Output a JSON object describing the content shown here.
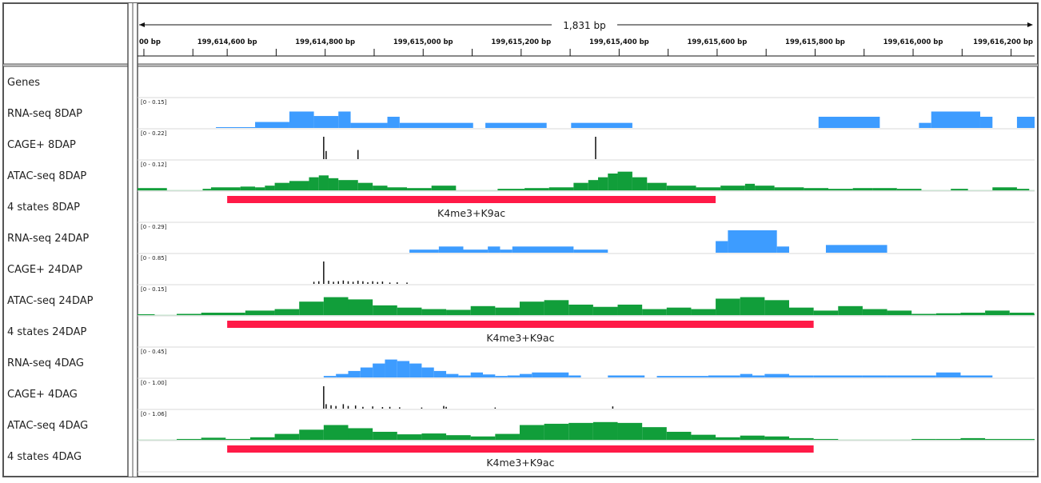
{
  "ruler": {
    "span_label": "1,831 bp",
    "ticks": [
      {
        "label": "00 bp",
        "value": 199614430
      },
      {
        "label": "199,614,600 bp",
        "value": 199614600
      },
      {
        "label": "199,614,800 bp",
        "value": 199614800
      },
      {
        "label": "199,615,000 bp",
        "value": 199615000
      },
      {
        "label": "199,615,200 bp",
        "value": 199615200
      },
      {
        "label": "199,615,400 bp",
        "value": 199615400
      },
      {
        "label": "199,615,600 bp",
        "value": 199615600
      },
      {
        "label": "199,615,800 bp",
        "value": 199615800
      },
      {
        "label": "199,616,000 bp",
        "value": 199616000
      },
      {
        "label": "199,616,200 bp",
        "value": 199616200
      }
    ]
  },
  "view": {
    "start": 199614417,
    "end": 199616248
  },
  "colors": {
    "rna": "#3d9cff",
    "atac": "#119e3a",
    "cage": "#111111",
    "state": "#ff1a47",
    "grid": "#d9d9d9",
    "frame": "#555555"
  },
  "tracks": [
    {
      "id": "genes",
      "name": "Genes",
      "type": "empty"
    },
    {
      "id": "rna-8dap",
      "name": "RNA-seq 8DAP",
      "type": "rna",
      "range": "[0 - 0.15]",
      "max": 0.15,
      "bins": [
        [
          199614577,
          199614657,
          0.0
        ],
        [
          199614657,
          199614727,
          0.04
        ],
        [
          199614727,
          199614777,
          0.11
        ],
        [
          199614777,
          199614827,
          0.08
        ],
        [
          199614827,
          199614852,
          0.11
        ],
        [
          199614852,
          199614927,
          0.034
        ],
        [
          199614927,
          199614952,
          0.075
        ],
        [
          199614952,
          199615102,
          0.034
        ],
        [
          199615127,
          199615252,
          0.034
        ],
        [
          199615302,
          199615427,
          0.034
        ],
        [
          199615807,
          199615932,
          0.075
        ],
        [
          199616012,
          199616037,
          0.034
        ],
        [
          199616037,
          199616137,
          0.11
        ],
        [
          199616137,
          199616162,
          0.075
        ],
        [
          199616212,
          199616342,
          0.075
        ]
      ]
    },
    {
      "id": "cage-8dap",
      "name": "CAGE+ 8DAP",
      "type": "cage",
      "range": "[0 - 0.22]",
      "max": 0.22,
      "spikes": [
        [
          199614797,
          0.22
        ],
        [
          199614802,
          0.08
        ],
        [
          199614867,
          0.09
        ],
        [
          199615352,
          0.22
        ]
      ]
    },
    {
      "id": "atac-8dap",
      "name": "ATAC-seq 8DAP",
      "type": "atac",
      "range": "[0 - 0.12]",
      "max": 0.12,
      "bins": [
        [
          199614417,
          199614477,
          0.012
        ],
        [
          199614550,
          199614567,
          0.008
        ],
        [
          199614567,
          199614627,
          0.016
        ],
        [
          199614627,
          199614657,
          0.02
        ],
        [
          199614657,
          199614677,
          0.016
        ],
        [
          199614677,
          199614697,
          0.025
        ],
        [
          199614697,
          199614727,
          0.04
        ],
        [
          199614727,
          199614767,
          0.05
        ],
        [
          199614767,
          199614787,
          0.07
        ],
        [
          199614787,
          199614807,
          0.08
        ],
        [
          199614807,
          199614827,
          0.065
        ],
        [
          199614827,
          199614867,
          0.055
        ],
        [
          199614867,
          199614897,
          0.04
        ],
        [
          199614897,
          199614927,
          0.025
        ],
        [
          199614927,
          199614967,
          0.016
        ],
        [
          199614967,
          199615017,
          0.012
        ],
        [
          199615017,
          199615067,
          0.025
        ],
        [
          199615152,
          199615207,
          0.008
        ],
        [
          199615207,
          199615257,
          0.012
        ],
        [
          199615257,
          199615307,
          0.016
        ],
        [
          199615307,
          199615337,
          0.04
        ],
        [
          199615337,
          199615357,
          0.055
        ],
        [
          199615357,
          199615377,
          0.07
        ],
        [
          199615377,
          199615397,
          0.09
        ],
        [
          199615397,
          199615427,
          0.1
        ],
        [
          199615427,
          199615457,
          0.07
        ],
        [
          199615457,
          199615497,
          0.04
        ],
        [
          199615497,
          199615557,
          0.025
        ],
        [
          199615557,
          199615607,
          0.016
        ],
        [
          199615607,
          199615657,
          0.025
        ],
        [
          199615657,
          199615677,
          0.035
        ],
        [
          199615677,
          199615717,
          0.025
        ],
        [
          199615717,
          199615777,
          0.016
        ],
        [
          199615777,
          199615827,
          0.012
        ],
        [
          199615827,
          199615877,
          0.008
        ],
        [
          199615877,
          199615917,
          0.012
        ],
        [
          199615917,
          199615967,
          0.012
        ],
        [
          199615967,
          199616017,
          0.008
        ],
        [
          199616077,
          199616112,
          0.008
        ],
        [
          199616162,
          199616212,
          0.016
        ],
        [
          199616212,
          199616237,
          0.008
        ]
      ]
    },
    {
      "id": "states-8dap",
      "name": "4 states 8DAP",
      "type": "state",
      "segments": [
        {
          "start": 199614600,
          "end": 199615597,
          "label": "K4me3+K9ac"
        }
      ]
    },
    {
      "id": "rna-24dap",
      "name": "RNA-seq 24DAP",
      "type": "rna",
      "range": "[0 - 0.29]",
      "max": 0.29,
      "bins": [
        [
          199614972,
          199615032,
          0.04
        ],
        [
          199615032,
          199615082,
          0.08
        ],
        [
          199615082,
          199615132,
          0.04
        ],
        [
          199615132,
          199615157,
          0.08
        ],
        [
          199615157,
          199615182,
          0.04
        ],
        [
          199615182,
          199615307,
          0.08
        ],
        [
          199615307,
          199615377,
          0.04
        ],
        [
          199615597,
          199615622,
          0.15
        ],
        [
          199615622,
          199615722,
          0.29
        ],
        [
          199615722,
          199615747,
          0.08
        ],
        [
          199615822,
          199615947,
          0.1
        ]
      ]
    },
    {
      "id": "cage-24dap",
      "name": "CAGE+ 24DAP",
      "type": "cage",
      "range": "[0 - 0.85]",
      "max": 0.85,
      "spikes": [
        [
          199614797,
          0.85
        ],
        [
          199614777,
          0.08
        ],
        [
          199614787,
          0.1
        ],
        [
          199614807,
          0.12
        ],
        [
          199614817,
          0.08
        ],
        [
          199614827,
          0.1
        ],
        [
          199614837,
          0.13
        ],
        [
          199614847,
          0.1
        ],
        [
          199614857,
          0.08
        ],
        [
          199614867,
          0.12
        ],
        [
          199614877,
          0.1
        ],
        [
          199614887,
          0.06
        ],
        [
          199614897,
          0.1
        ],
        [
          199614907,
          0.07
        ],
        [
          199614917,
          0.09
        ],
        [
          199614932,
          0.05
        ],
        [
          199614947,
          0.06
        ],
        [
          199614967,
          0.05
        ]
      ]
    },
    {
      "id": "atac-24dap",
      "name": "ATAC-seq 24DAP",
      "type": "atac",
      "range": "[0 - 0.15]",
      "max": 0.15,
      "bins": [
        [
          199614417,
          199614452,
          0.004
        ],
        [
          199614497,
          199614547,
          0.008
        ],
        [
          199614547,
          199614637,
          0.016
        ],
        [
          199614637,
          199614697,
          0.03
        ],
        [
          199614697,
          199614747,
          0.04
        ],
        [
          199614747,
          199614797,
          0.09
        ],
        [
          199614797,
          199614847,
          0.12
        ],
        [
          199614847,
          199614897,
          0.105
        ],
        [
          199614897,
          199614947,
          0.065
        ],
        [
          199614947,
          199614997,
          0.05
        ],
        [
          199614997,
          199615047,
          0.04
        ],
        [
          199615047,
          199615097,
          0.035
        ],
        [
          199615097,
          199615147,
          0.06
        ],
        [
          199615147,
          199615197,
          0.05
        ],
        [
          199615197,
          199615247,
          0.09
        ],
        [
          199615247,
          199615297,
          0.1
        ],
        [
          199615297,
          199615347,
          0.07
        ],
        [
          199615347,
          199615397,
          0.055
        ],
        [
          199615397,
          199615447,
          0.07
        ],
        [
          199615447,
          199615497,
          0.04
        ],
        [
          199615497,
          199615547,
          0.05
        ],
        [
          199615547,
          199615597,
          0.04
        ],
        [
          199615597,
          199615647,
          0.11
        ],
        [
          199615647,
          199615697,
          0.12
        ],
        [
          199615697,
          199615747,
          0.1
        ],
        [
          199615747,
          199615797,
          0.05
        ],
        [
          199615797,
          199615847,
          0.03
        ],
        [
          199615847,
          199615897,
          0.06
        ],
        [
          199615897,
          199615947,
          0.04
        ],
        [
          199615947,
          199615997,
          0.03
        ],
        [
          199615997,
          199616047,
          0.008
        ],
        [
          199616047,
          199616097,
          0.012
        ],
        [
          199616097,
          199616147,
          0.016
        ],
        [
          199616147,
          199616197,
          0.03
        ],
        [
          199616197,
          199616247,
          0.016
        ],
        [
          199616247,
          199616342,
          0.008
        ]
      ]
    },
    {
      "id": "states-24dap",
      "name": "4 states 24DAP",
      "type": "state",
      "segments": [
        {
          "start": 199614600,
          "end": 199615797,
          "label": "K4me3+K9ac"
        }
      ]
    },
    {
      "id": "rna-4dag",
      "name": "RNA-seq 4DAG",
      "type": "rna",
      "range": "[0 - 0.45]",
      "max": 0.45,
      "bins": [
        [
          199614797,
          199614822,
          0.03
        ],
        [
          199614822,
          199614847,
          0.07
        ],
        [
          199614847,
          199614872,
          0.13
        ],
        [
          199614872,
          199614897,
          0.2
        ],
        [
          199614897,
          199614922,
          0.28
        ],
        [
          199614922,
          199614947,
          0.36
        ],
        [
          199614947,
          199614972,
          0.33
        ],
        [
          199614972,
          199614997,
          0.28
        ],
        [
          199614997,
          199615022,
          0.2
        ],
        [
          199615022,
          199615047,
          0.13
        ],
        [
          199615047,
          199615072,
          0.07
        ],
        [
          199615072,
          199615097,
          0.04
        ],
        [
          199615097,
          199615122,
          0.1
        ],
        [
          199615122,
          199615147,
          0.06
        ],
        [
          199615147,
          199615172,
          0.03
        ],
        [
          199615172,
          199615197,
          0.04
        ],
        [
          199615197,
          199615222,
          0.07
        ],
        [
          199615222,
          199615297,
          0.1
        ],
        [
          199615297,
          199615322,
          0.04
        ],
        [
          199615377,
          199615452,
          0.04
        ],
        [
          199615477,
          199615552,
          0.03
        ],
        [
          199615552,
          199615582,
          0.03
        ],
        [
          199615582,
          199615647,
          0.04
        ],
        [
          199615647,
          199615672,
          0.07
        ],
        [
          199615672,
          199615697,
          0.04
        ],
        [
          199615697,
          199615747,
          0.07
        ],
        [
          199615747,
          199615797,
          0.04
        ],
        [
          199615797,
          199615897,
          0.04
        ],
        [
          199615897,
          199615947,
          0.04
        ],
        [
          199615947,
          199616047,
          0.04
        ],
        [
          199616047,
          199616097,
          0.1
        ],
        [
          199616097,
          199616162,
          0.04
        ]
      ]
    },
    {
      "id": "cage-4dag",
      "name": "CAGE+ 4DAG",
      "type": "cage",
      "range": "[0 - 1.00]",
      "max": 1.0,
      "spikes": [
        [
          199614797,
          1.0
        ],
        [
          199614802,
          0.2
        ],
        [
          199614812,
          0.15
        ],
        [
          199614822,
          0.12
        ],
        [
          199614837,
          0.2
        ],
        [
          199614847,
          0.12
        ],
        [
          199614862,
          0.14
        ],
        [
          199614877,
          0.08
        ],
        [
          199614897,
          0.1
        ],
        [
          199614917,
          0.07
        ],
        [
          199614932,
          0.08
        ],
        [
          199614952,
          0.06
        ],
        [
          199614997,
          0.05
        ],
        [
          199615042,
          0.12
        ],
        [
          199615047,
          0.08
        ],
        [
          199615147,
          0.05
        ],
        [
          199615387,
          0.1
        ]
      ]
    },
    {
      "id": "atac-4dag",
      "name": "ATAC-seq 4DAG",
      "type": "atac",
      "range": "[0 - 1.06]",
      "max": 1.06,
      "bins": [
        [
          199614497,
          199614547,
          0.04
        ],
        [
          199614547,
          199614597,
          0.1
        ],
        [
          199614597,
          199614647,
          0.04
        ],
        [
          199614647,
          199614697,
          0.12
        ],
        [
          199614697,
          199614747,
          0.28
        ],
        [
          199614747,
          199614797,
          0.48
        ],
        [
          199614797,
          199614847,
          0.7
        ],
        [
          199614847,
          199614897,
          0.55
        ],
        [
          199614897,
          199614947,
          0.38
        ],
        [
          199614947,
          199614997,
          0.26
        ],
        [
          199614997,
          199615047,
          0.3
        ],
        [
          199615047,
          199615097,
          0.22
        ],
        [
          199615097,
          199615147,
          0.16
        ],
        [
          199615147,
          199615197,
          0.28
        ],
        [
          199615197,
          199615247,
          0.7
        ],
        [
          199615247,
          199615297,
          0.76
        ],
        [
          199615297,
          199615347,
          0.8
        ],
        [
          199615347,
          199615397,
          0.84
        ],
        [
          199615397,
          199615447,
          0.8
        ],
        [
          199615447,
          199615497,
          0.6
        ],
        [
          199615497,
          199615547,
          0.38
        ],
        [
          199615547,
          199615597,
          0.24
        ],
        [
          199615597,
          199615647,
          0.12
        ],
        [
          199615647,
          199615697,
          0.2
        ],
        [
          199615697,
          199615747,
          0.16
        ],
        [
          199615747,
          199615797,
          0.08
        ],
        [
          199615797,
          199615847,
          0.04
        ],
        [
          199615997,
          199616047,
          0.04
        ],
        [
          199616047,
          199616097,
          0.04
        ],
        [
          199616097,
          199616147,
          0.08
        ],
        [
          199616147,
          199616342,
          0.04
        ]
      ]
    },
    {
      "id": "states-4dag",
      "name": "4 states 4DAG",
      "type": "state",
      "segments": [
        {
          "start": 199614600,
          "end": 199615797,
          "label": "K4me3+K9ac"
        }
      ]
    }
  ]
}
